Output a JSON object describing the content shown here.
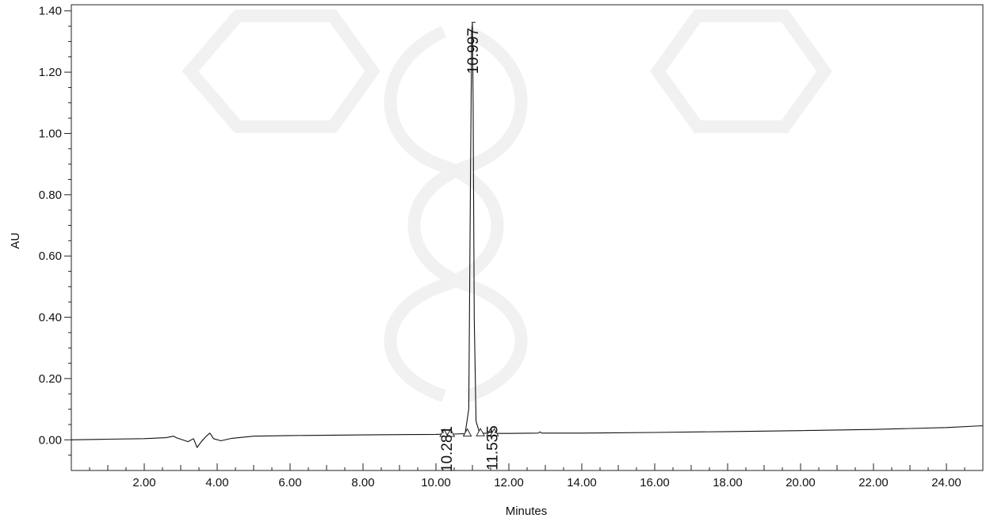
{
  "chart_data": {
    "type": "line",
    "title": "",
    "xlabel": "Minutes",
    "ylabel": "AU",
    "xlim": [
      0.0,
      25.0
    ],
    "ylim": [
      -0.1,
      1.42
    ],
    "x_ticks": [
      "2.00",
      "4.00",
      "6.00",
      "8.00",
      "10.00",
      "12.00",
      "14.00",
      "16.00",
      "18.00",
      "20.00",
      "22.00",
      "24.00"
    ],
    "x_tick_values": [
      2,
      4,
      6,
      8,
      10,
      12,
      14,
      16,
      18,
      20,
      22,
      24
    ],
    "y_ticks": [
      "0.00",
      "0.20",
      "0.40",
      "0.60",
      "0.80",
      "1.00",
      "1.20",
      "1.40"
    ],
    "y_tick_values": [
      0.0,
      0.2,
      0.4,
      0.6,
      0.8,
      1.0,
      1.2,
      1.4
    ],
    "grid": false,
    "series": [
      {
        "x": [
          0.0,
          1.0,
          2.0,
          2.6,
          2.8,
          2.9,
          3.0,
          3.2,
          3.35,
          3.45,
          3.55,
          3.7,
          3.8,
          3.9,
          4.1,
          4.4,
          5.0,
          6.0,
          8.0,
          10.0,
          10.28,
          10.5,
          10.8,
          10.9,
          10.95,
          10.98,
          11.0,
          11.02,
          11.05,
          11.1,
          11.2,
          11.535,
          12.0,
          12.8,
          12.85,
          12.9,
          14.0,
          16.0,
          18.0,
          20.0,
          22.0,
          24.0,
          25.0
        ],
        "y": [
          0.0,
          0.002,
          0.004,
          0.007,
          0.012,
          0.006,
          0.002,
          -0.006,
          0.004,
          -0.025,
          -0.008,
          0.012,
          0.022,
          0.004,
          -0.003,
          0.005,
          0.012,
          0.014,
          0.016,
          0.018,
          0.019,
          0.019,
          0.02,
          0.1,
          0.9,
          1.33,
          1.36,
          1.1,
          0.4,
          0.06,
          0.022,
          0.021,
          0.021,
          0.022,
          0.026,
          0.022,
          0.022,
          0.024,
          0.027,
          0.03,
          0.034,
          0.04,
          0.046
        ]
      }
    ],
    "peaks": [
      {
        "label": "10.281",
        "x": 10.281,
        "y": 0.019
      },
      {
        "label": "10.997",
        "x": 10.997,
        "y": 1.36
      },
      {
        "label": "11.535",
        "x": 11.535,
        "y": 0.021
      }
    ],
    "peak_markers": [
      {
        "x": 10.22,
        "y": 0.019
      },
      {
        "x": 10.4,
        "y": 0.019
      },
      {
        "x": 10.86,
        "y": 0.02
      },
      {
        "x": 11.22,
        "y": 0.021
      },
      {
        "x": 11.5,
        "y": 0.021
      },
      {
        "x": 11.6,
        "y": 0.021
      }
    ]
  }
}
